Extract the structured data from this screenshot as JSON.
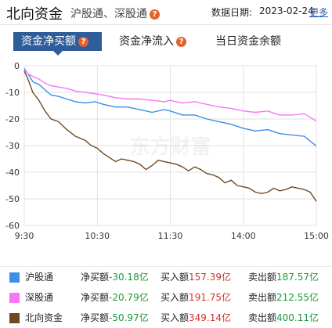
{
  "header": {
    "title": "北向资金",
    "subtitle": "沪股通、深股通",
    "date_label": "数据日期:",
    "date_value": "2023-02-24",
    "more_label": "更多"
  },
  "tabs": [
    {
      "label": "资金净买额",
      "active": true
    },
    {
      "label": "资金净流入",
      "active": false
    },
    {
      "label": "当日资金余额",
      "active": false
    }
  ],
  "watermark": "东方财富",
  "colors": {
    "accent": "#2f5c9a",
    "help": "#e4622a",
    "sh": "#3c8ee6",
    "sz": "#f777f7",
    "north": "#6e4a24",
    "positive": "#d0312d",
    "negative": "#1a9a3a"
  },
  "chart_data": {
    "type": "line",
    "x_ticks": [
      "9:30",
      "10:30",
      "11:30",
      "14:00",
      "15:00"
    ],
    "y_ticks": [
      "0",
      "-10",
      "-20",
      "-30",
      "-40",
      "-50",
      "-60"
    ],
    "ylim": [
      -60,
      0
    ],
    "grid": true,
    "legend": "bottom-table",
    "series": [
      {
        "name": "沪股通",
        "color": "#3c8ee6",
        "points": [
          [
            0,
            -1
          ],
          [
            3,
            -3
          ],
          [
            7,
            -6
          ],
          [
            12,
            -7
          ],
          [
            17,
            -9
          ],
          [
            22,
            -11
          ],
          [
            28,
            -11.5
          ],
          [
            35,
            -12.5
          ],
          [
            42,
            -13.5
          ],
          [
            50,
            -14
          ],
          [
            58,
            -13.5
          ],
          [
            65,
            -14.5
          ],
          [
            75,
            -15.5
          ],
          [
            85,
            -15.5
          ],
          [
            95,
            -16.5
          ],
          [
            105,
            -17.5
          ],
          [
            115,
            -16.5
          ],
          [
            120,
            -17
          ],
          [
            130,
            -18.5
          ],
          [
            140,
            -18.5
          ],
          [
            150,
            -20
          ],
          [
            160,
            -21
          ],
          [
            170,
            -22
          ],
          [
            180,
            -23.5
          ],
          [
            190,
            -24.5
          ],
          [
            200,
            -24
          ],
          [
            210,
            -25.5
          ],
          [
            220,
            -26
          ],
          [
            230,
            -26.5
          ],
          [
            240,
            -30.18
          ]
        ]
      },
      {
        "name": "深股通",
        "color": "#f777f7",
        "points": [
          [
            0,
            -1.5
          ],
          [
            3,
            -3
          ],
          [
            7,
            -4
          ],
          [
            12,
            -5
          ],
          [
            17,
            -6.5
          ],
          [
            22,
            -7.5
          ],
          [
            28,
            -8
          ],
          [
            35,
            -8.5
          ],
          [
            42,
            -9.5
          ],
          [
            50,
            -10
          ],
          [
            58,
            -10.5
          ],
          [
            65,
            -11
          ],
          [
            75,
            -12
          ],
          [
            85,
            -12.5
          ],
          [
            95,
            -12.5
          ],
          [
            105,
            -13
          ],
          [
            115,
            -13.5
          ],
          [
            120,
            -13
          ],
          [
            130,
            -14
          ],
          [
            140,
            -13.5
          ],
          [
            150,
            -14.5
          ],
          [
            160,
            -15.5
          ],
          [
            170,
            -16
          ],
          [
            180,
            -17
          ],
          [
            190,
            -17.5
          ],
          [
            200,
            -17
          ],
          [
            210,
            -18.5
          ],
          [
            220,
            -18.5
          ],
          [
            230,
            -18
          ],
          [
            240,
            -20.79
          ]
        ]
      },
      {
        "name": "北向资金",
        "color": "#6e4a24",
        "points": [
          [
            0,
            -2
          ],
          [
            3,
            -5
          ],
          [
            7,
            -10
          ],
          [
            12,
            -13
          ],
          [
            17,
            -17
          ],
          [
            22,
            -20
          ],
          [
            28,
            -21
          ],
          [
            35,
            -24
          ],
          [
            42,
            -26.5
          ],
          [
            50,
            -28
          ],
          [
            55,
            -30
          ],
          [
            60,
            -31
          ],
          [
            65,
            -33
          ],
          [
            70,
            -34.5
          ],
          [
            75,
            -36
          ],
          [
            80,
            -35
          ],
          [
            85,
            -35.5
          ],
          [
            90,
            -36
          ],
          [
            95,
            -37
          ],
          [
            100,
            -39
          ],
          [
            105,
            -37.5
          ],
          [
            110,
            -35.5
          ],
          [
            115,
            -36
          ],
          [
            120,
            -36.5
          ],
          [
            125,
            -37
          ],
          [
            130,
            -38
          ],
          [
            135,
            -39.5
          ],
          [
            140,
            -38
          ],
          [
            145,
            -39
          ],
          [
            150,
            -40.5
          ],
          [
            155,
            -41
          ],
          [
            160,
            -42
          ],
          [
            165,
            -44
          ],
          [
            170,
            -43
          ],
          [
            175,
            -45
          ],
          [
            180,
            -45.5
          ],
          [
            185,
            -46
          ],
          [
            190,
            -47.5
          ],
          [
            195,
            -48
          ],
          [
            200,
            -47.5
          ],
          [
            205,
            -46
          ],
          [
            210,
            -47
          ],
          [
            215,
            -46.5
          ],
          [
            220,
            -45.5
          ],
          [
            225,
            -46
          ],
          [
            230,
            -46.5
          ],
          [
            235,
            -47.5
          ],
          [
            240,
            -50.97
          ]
        ]
      }
    ]
  },
  "legend_rows": [
    {
      "name": "沪股通",
      "color": "#3c8ee6",
      "net_label": "净买额",
      "net_value": "-30.18亿",
      "buy_label": "买入额",
      "buy_value": "157.39亿",
      "sell_label": "卖出额",
      "sell_value": "187.57亿"
    },
    {
      "name": "深股通",
      "color": "#f777f7",
      "net_label": "净买额",
      "net_value": "-20.79亿",
      "buy_label": "买入额",
      "buy_value": "191.75亿",
      "sell_label": "卖出额",
      "sell_value": "212.55亿"
    },
    {
      "name": "北向资金",
      "color": "#6e4a24",
      "net_label": "净买额",
      "net_value": "-50.97亿",
      "buy_label": "买入额",
      "buy_value": "349.14亿",
      "sell_label": "卖出额",
      "sell_value": "400.11亿"
    }
  ]
}
